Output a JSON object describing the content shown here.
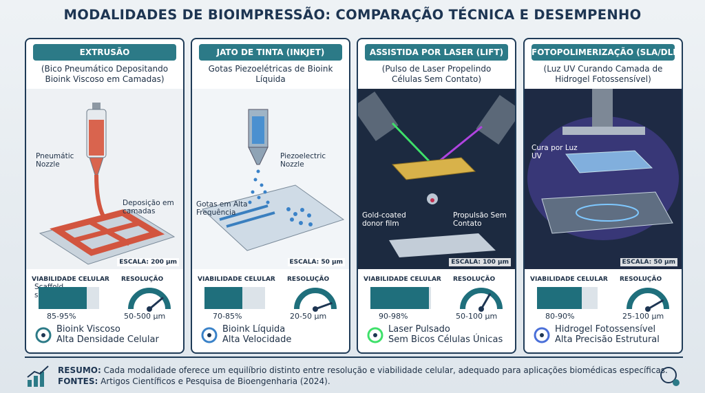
{
  "title": "MODALIDADES DE BIOIMPRESSÃO: COMPARAÇÃO TÉCNICA E DESEMPENHO",
  "panels": [
    {
      "header": "EXTRUSÃO",
      "subtitle": "(Bico Pneumático Depositando Bioink Viscoso em Camadas)",
      "labels": [
        "Pneumátic Nozzle",
        "Deposição em camadas",
        "Scaffold substrate"
      ],
      "scale": "ESCALA: 200 µm",
      "viability": {
        "label": "VIABILIDADE CELULAR",
        "value": "85-95%"
      },
      "resolution": {
        "label": "RESOLUÇÃO",
        "value": "50-500 µm"
      },
      "features": [
        "Bioink Viscoso",
        "Alta Densidade Celular"
      ]
    },
    {
      "header": "JATO DE TINTA (INKJET)",
      "subtitle": "Gotas Piezoelétricas de Bioink Líquida",
      "labels": [
        "Piezoelectric Nozzle",
        "Gotas em Alta Frequência"
      ],
      "scale": "ESCALA: 50 µm",
      "viability": {
        "label": "VIABILIDADE CELULAR",
        "value": "70-85%"
      },
      "resolution": {
        "label": "RESOLUÇÃO",
        "value": "20-50 µm"
      },
      "features": [
        "Bioink Líquida",
        "Alta Velocidade"
      ]
    },
    {
      "header": "ASSISTIDA POR LASER (LIFT)",
      "subtitle": "(Pulso de Laser Propelindo Células Sem Contato)",
      "labels": [
        "Gold-coated donor film",
        "Propulsão Sem Contato"
      ],
      "scale": "ESCALA: 100 µm",
      "viability": {
        "label": "VIABILIDADE CELULAR",
        "value": "90-98%"
      },
      "resolution": {
        "label": "RESOLUÇÃO",
        "value": "50-100 µm"
      },
      "features": [
        "Laser Pulsado",
        "Sem Bicos Células Únicas"
      ]
    },
    {
      "header": "FOTOPOLIMERIZAÇÃO (SLA/DLP)",
      "subtitle": "(Luz UV Curando Camada de Hidrogel Fotossensível)",
      "labels": [
        "Cura por Luz UV",
        "Cura por Luz UV"
      ],
      "scale": "ESCALA: 50 µm",
      "viability": {
        "label": "VIABILIDADE CELULAR",
        "value": "80-90%"
      },
      "resolution": {
        "label": "RESOLUÇÃO",
        "value": "25-100 µm"
      },
      "features": [
        "Hidrogel Fotossensível",
        "Alta Precisão Estrutural"
      ]
    }
  ],
  "footer": {
    "summary_label": "RESUMO:",
    "summary": "Cada modalidade oferece um equilíbrio distinto entre resolução e viabilidade celular, adequado para aplicações biomédicas específicas.",
    "sources_label": "FONTES:",
    "sources": "Artigos Científicos e Pesquisa de Bioengenharia (2024)."
  }
}
